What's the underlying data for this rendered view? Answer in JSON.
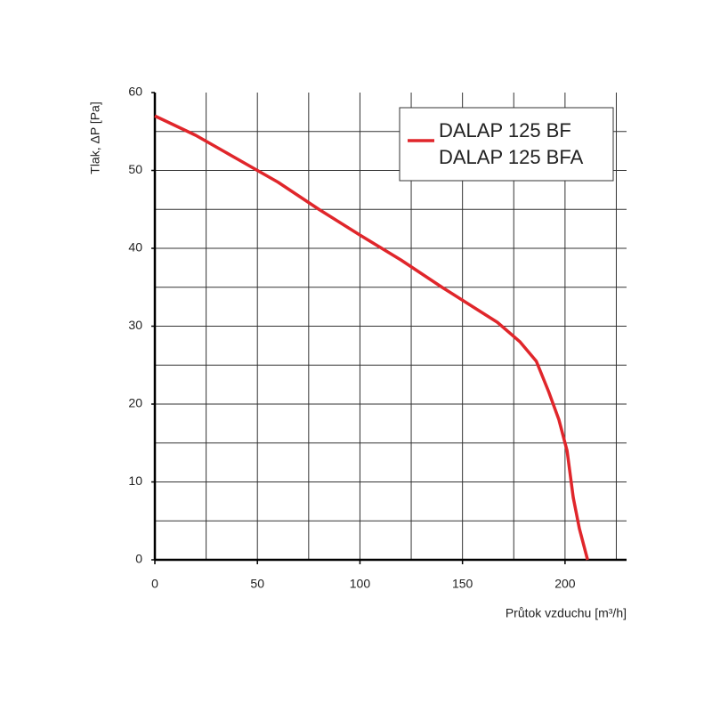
{
  "chart_data": {
    "type": "line",
    "xlabel": "Průtok vzduchu [m³/h]",
    "ylabel": "Tlak, ΔP [Pa]",
    "xlim": [
      0,
      230
    ],
    "ylim": [
      0,
      60
    ],
    "xticks": [
      0,
      50,
      100,
      150,
      200
    ],
    "yticks": [
      0,
      10,
      20,
      30,
      40,
      50,
      60
    ],
    "xgrid": [
      25,
      50,
      75,
      100,
      125,
      150,
      175,
      200,
      225
    ],
    "ygrid": [
      5,
      10,
      15,
      20,
      25,
      30,
      35,
      40,
      45,
      50,
      55
    ],
    "grid": true,
    "legend": "upper right",
    "legend_also": "DALAP 125 BFA",
    "series": [
      {
        "name": "DALAP 125 BF",
        "color": "#e0262b",
        "x": [
          0,
          20,
          40,
          60,
          80,
          100,
          120,
          140,
          155,
          167,
          178,
          186,
          192,
          197,
          201,
          204,
          207,
          211
        ],
        "values": [
          57,
          54.5,
          51.5,
          48.5,
          45,
          41.7,
          38.5,
          35,
          32.5,
          30.5,
          28,
          25.5,
          21.6,
          18,
          14,
          8,
          4,
          0
        ]
      }
    ]
  }
}
